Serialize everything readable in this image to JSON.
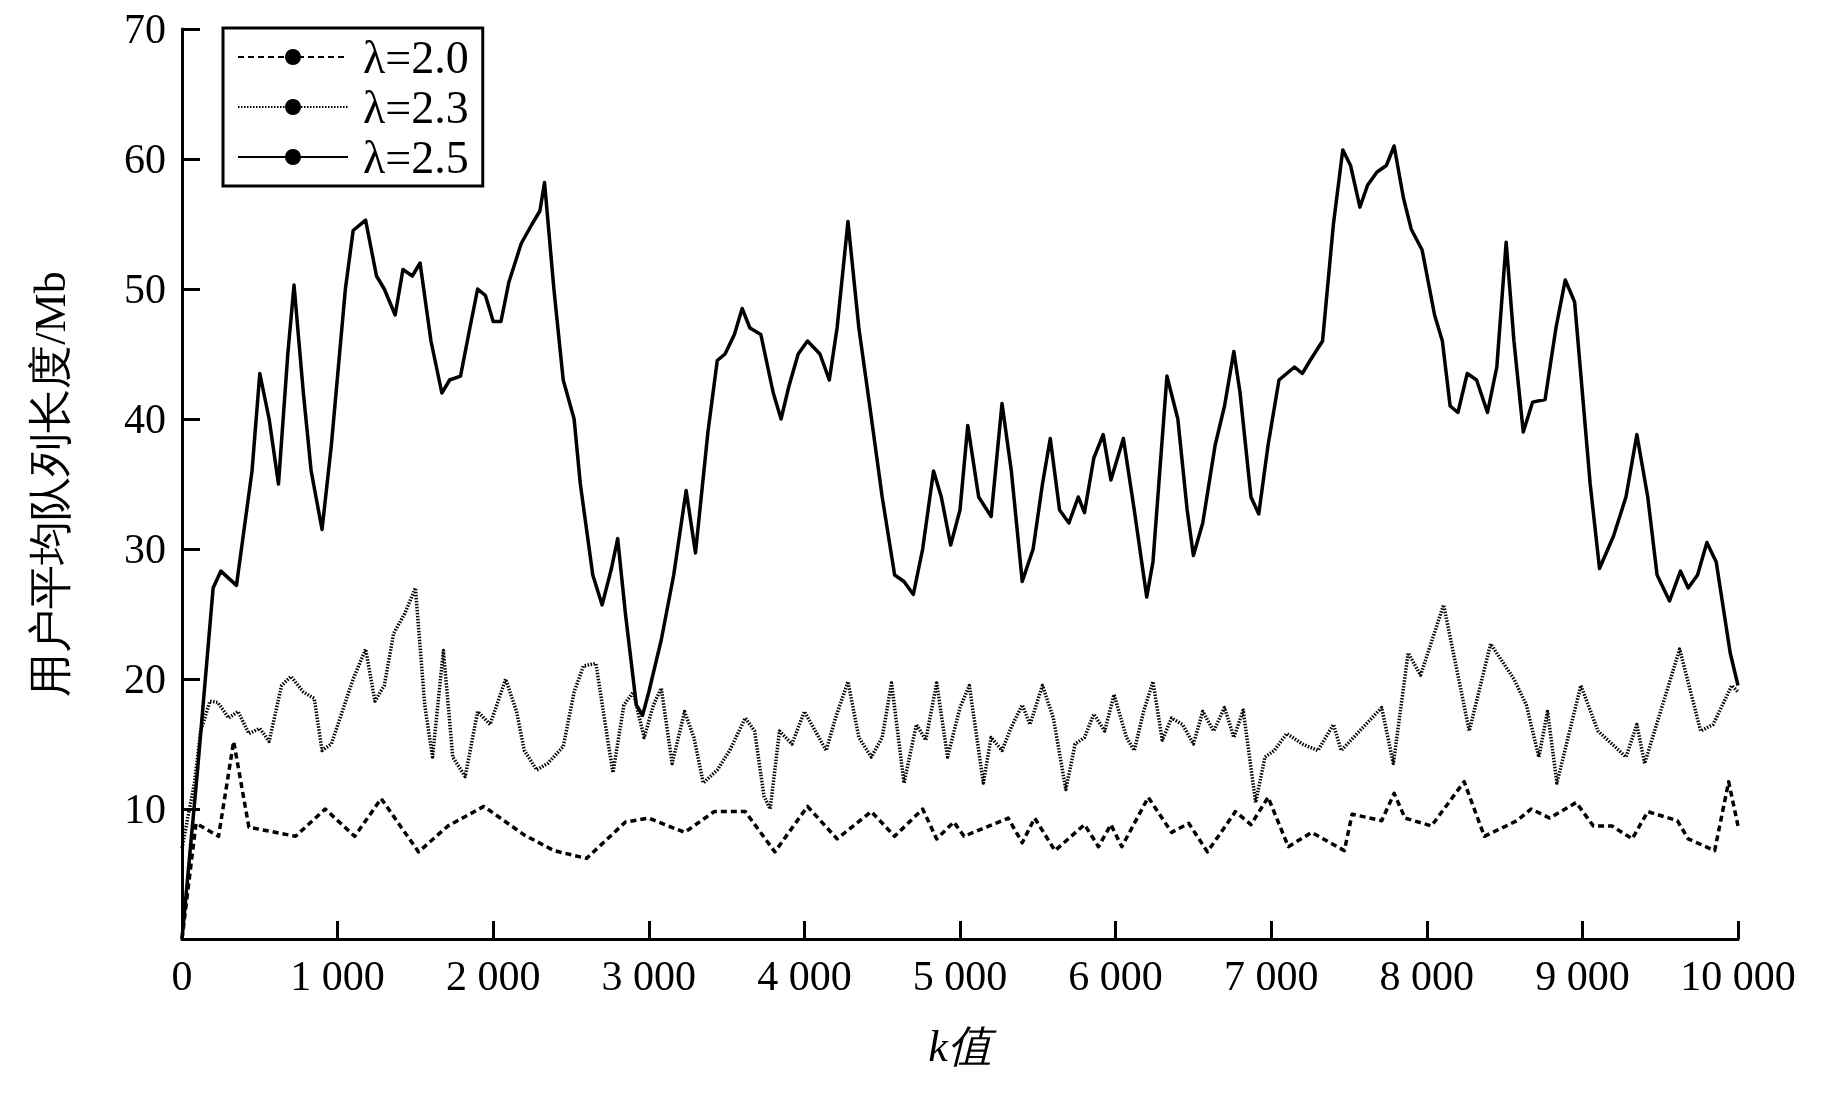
{
  "chart_data": {
    "type": "line",
    "xlabel": "k值",
    "ylabel": "用户平均队列长度/Mb",
    "xlim": [
      0,
      10000
    ],
    "ylim": [
      0,
      70
    ],
    "xticks": [
      0,
      {
        "value": 1000,
        "label": "1 000"
      },
      {
        "value": 2000,
        "label": "2 000"
      },
      {
        "value": 3000,
        "label": "3 000"
      },
      {
        "value": 4000,
        "label": "4 000"
      },
      {
        "value": 5000,
        "label": "5 000"
      },
      {
        "value": 6000,
        "label": "6 000"
      },
      {
        "value": 7000,
        "label": "7 000"
      },
      {
        "value": 8000,
        "label": "8 000"
      },
      {
        "value": 9000,
        "label": "9 000"
      },
      {
        "value": 10000,
        "label": "10 000"
      }
    ],
    "yticks": [
      10,
      20,
      30,
      40,
      50,
      60,
      70
    ],
    "grid": false,
    "legend": "top left",
    "marker": "none",
    "series": [
      {
        "name": "λ=2.0",
        "color": "#000000",
        "line_style": "dashed",
        "x": [
          0,
          90,
          235,
          332,
          430,
          730,
          920,
          1110,
          1280,
          1520,
          1710,
          1940,
          2200,
          2390,
          2600,
          2850,
          3000,
          3230,
          3420,
          3620,
          3810,
          4020,
          4210,
          4430,
          4580,
          4760,
          4850,
          4960,
          5026,
          5310,
          5400,
          5480,
          5610,
          5800,
          5890,
          5970,
          6040,
          6210,
          6360,
          6470,
          6590,
          6770,
          6870,
          6980,
          7110,
          7260,
          7470,
          7520,
          7710,
          7790,
          7860,
          8030,
          8240,
          8370,
          8580,
          8670,
          8790,
          8960,
          9070,
          9190,
          9320,
          9420,
          9610,
          9680,
          9850,
          9940,
          10000
        ],
        "values": [
          0,
          8.9,
          7.9,
          15.2,
          8.6,
          7.9,
          10,
          7.9,
          10.8,
          6.7,
          8.7,
          10.2,
          8,
          6.8,
          6.2,
          9,
          9.3,
          8.2,
          9.8,
          9.8,
          6.7,
          10.2,
          7.7,
          9.8,
          7.9,
          10,
          7.7,
          9,
          7.9,
          9.3,
          7.4,
          9.3,
          6.8,
          8.8,
          7.1,
          8.8,
          7.1,
          10.9,
          8.2,
          8.9,
          6.7,
          9.8,
          8.8,
          10.9,
          7.1,
          8.2,
          6.8,
          9.6,
          9.1,
          11.2,
          9.3,
          8.7,
          12.1,
          7.9,
          9.1,
          10,
          9.3,
          10.5,
          8.7,
          8.7,
          7.7,
          9.8,
          9.1,
          7.7,
          6.8,
          12.1,
          8.7
        ]
      },
      {
        "name": "λ=2.3",
        "color": "#000000",
        "line_style": "dotted",
        "x": [
          0,
          80,
          120,
          180,
          230,
          300,
          360,
          430,
          500,
          560,
          640,
          700,
          780,
          850,
          900,
          960,
          1030,
          1100,
          1180,
          1240,
          1300,
          1360,
          1430,
          1500,
          1560,
          1610,
          1680,
          1740,
          1820,
          1900,
          1980,
          2080,
          2150,
          2200,
          2280,
          2350,
          2450,
          2520,
          2580,
          2660,
          2740,
          2770,
          2840,
          2900,
          2970,
          3030,
          3080,
          3150,
          3230,
          3290,
          3350,
          3440,
          3520,
          3620,
          3680,
          3740,
          3780,
          3840,
          3920,
          4000,
          4070,
          4140,
          4200,
          4280,
          4350,
          4430,
          4500,
          4560,
          4640,
          4720,
          4780,
          4850,
          4920,
          5000,
          5060,
          5150,
          5200,
          5270,
          5330,
          5400,
          5450,
          5530,
          5600,
          5680,
          5740,
          5800,
          5860,
          5930,
          5990,
          6070,
          6120,
          6180,
          6240,
          6300,
          6360,
          6430,
          6500,
          6560,
          6630,
          6700,
          6760,
          6820,
          6900,
          6960,
          7020,
          7100,
          7200,
          7300,
          7400,
          7450,
          7710,
          7785,
          7880,
          7960,
          8108,
          8273,
          8410,
          8560,
          8640,
          8720,
          8776,
          8836,
          8990,
          9100,
          9280,
          9350,
          9400,
          9625,
          9760,
          9840,
          9960,
          10000
        ],
        "values": [
          7,
          12,
          16,
          18.3,
          18.2,
          17,
          17.5,
          15.8,
          16.2,
          15.2,
          19.5,
          20.2,
          19,
          18.5,
          14.5,
          15,
          17.5,
          20,
          22.3,
          18.3,
          19.5,
          23.5,
          25,
          27,
          18,
          14,
          22.2,
          14,
          12.5,
          17.5,
          16.5,
          20,
          17.5,
          14.5,
          13,
          13.5,
          14.8,
          19,
          21,
          21.2,
          15,
          12.8,
          18,
          19,
          15.5,
          18,
          19.3,
          13.5,
          17.5,
          15.5,
          12,
          13,
          14.5,
          17,
          16,
          11,
          10,
          16,
          15,
          17.5,
          16,
          14.5,
          17,
          19.8,
          15.5,
          14,
          15.5,
          19.7,
          12,
          16.5,
          15.3,
          19.7,
          14,
          17.8,
          19.5,
          12,
          15.5,
          14.5,
          16.3,
          18,
          16.5,
          19.5,
          17,
          11.5,
          15,
          15.5,
          17.3,
          16,
          18.8,
          15.5,
          14.5,
          17.5,
          19.8,
          15.3,
          17,
          16.5,
          15,
          17.5,
          16,
          17.8,
          15.5,
          17.6,
          10.5,
          14,
          14.5,
          15.8,
          15,
          14.5,
          16.5,
          14.5,
          17.8,
          13.5,
          22,
          20.3,
          25.7,
          16,
          22.7,
          20,
          18,
          14,
          17.5,
          12,
          19.5,
          16,
          14,
          16.5,
          13.5,
          22.3,
          16,
          16.5,
          19.5,
          19
        ]
      },
      {
        "name": "λ=2.5",
        "color": "#000000",
        "line_style": "solid",
        "x": [
          0,
          100,
          200,
          250,
          350,
          450,
          500,
          560,
          620,
          680,
          720,
          780,
          830,
          900,
          960,
          1050,
          1100,
          1180,
          1250,
          1300,
          1370,
          1420,
          1480,
          1530,
          1600,
          1670,
          1720,
          1790,
          1850,
          1900,
          1950,
          2000,
          2050,
          2100,
          2180,
          2250,
          2300,
          2330,
          2390,
          2450,
          2520,
          2560,
          2640,
          2700,
          2760,
          2800,
          2850,
          2920,
          2960,
          3000,
          3080,
          3160,
          3240,
          3300,
          3380,
          3440,
          3490,
          3550,
          3600,
          3650,
          3720,
          3800,
          3850,
          3900,
          3960,
          4020,
          4100,
          4160,
          4210,
          4280,
          4350,
          4420,
          4500,
          4580,
          4640,
          4700,
          4760,
          4830,
          4880,
          4940,
          5000,
          5050,
          5120,
          5200,
          5270,
          5330,
          5400,
          5470,
          5530,
          5580,
          5640,
          5700,
          5760,
          5800,
          5860,
          5920,
          5970,
          6050,
          6120,
          6200,
          6240,
          6330,
          6400,
          6460,
          6500,
          6560,
          6640,
          6700,
          6760,
          6800,
          6870,
          6920,
          6980,
          7050,
          7150,
          7200,
          7250,
          7330,
          7400,
          7460,
          7510,
          7570,
          7620,
          7680,
          7740,
          7790,
          7850,
          7900,
          7970,
          8050,
          8100,
          8150,
          8200,
          8260,
          8320,
          8390,
          8450,
          8510,
          8560,
          8620,
          8680,
          8760,
          8830,
          8890,
          8950,
          9050,
          9110,
          9200,
          9280,
          9350,
          9420,
          9480,
          9560,
          9630,
          9680,
          9740,
          9800,
          9860,
          9950,
          10000
        ],
        "values": [
          0,
          13,
          27,
          28.3,
          27.2,
          36,
          43.5,
          40,
          35,
          45,
          50.3,
          42,
          36,
          31.5,
          38,
          50,
          54.5,
          55.3,
          51,
          50,
          48,
          51.5,
          51,
          52,
          46,
          42,
          43,
          43.3,
          47,
          50,
          49.5,
          47.5,
          47.5,
          50.5,
          53.5,
          55,
          56,
          58.2,
          50,
          43,
          40,
          35,
          28,
          25.7,
          28.5,
          30.8,
          25,
          18,
          17.2,
          19,
          23,
          28,
          34.5,
          29.7,
          39,
          44.5,
          45,
          46.5,
          48.5,
          47,
          46.5,
          42,
          40,
          42.5,
          45,
          46,
          45,
          43,
          47,
          55.2,
          47,
          41,
          34,
          28,
          27.5,
          26.5,
          30,
          36,
          34,
          30.3,
          33,
          39.5,
          34,
          32.5,
          41.2,
          36,
          27.5,
          30,
          35,
          38.5,
          33,
          32,
          34,
          32.8,
          37,
          38.8,
          35.3,
          38.5,
          33,
          26.3,
          29,
          43.3,
          40,
          33,
          29.5,
          32,
          38,
          41,
          45.2,
          42,
          34,
          32.7,
          38,
          43,
          44,
          43.5,
          44.5,
          46,
          55,
          60.7,
          59.5,
          56.3,
          58,
          59,
          59.5,
          61,
          57,
          54.6,
          53,
          48,
          46,
          41,
          40.5,
          43.5,
          43,
          40.5,
          44,
          53.6,
          46,
          39,
          41.3,
          41.5,
          47,
          50.7,
          49,
          35,
          28.5,
          31,
          34,
          38.8,
          34,
          28,
          26,
          28.3,
          27,
          28,
          30.5,
          29,
          22,
          19.5
        ]
      }
    ]
  }
}
